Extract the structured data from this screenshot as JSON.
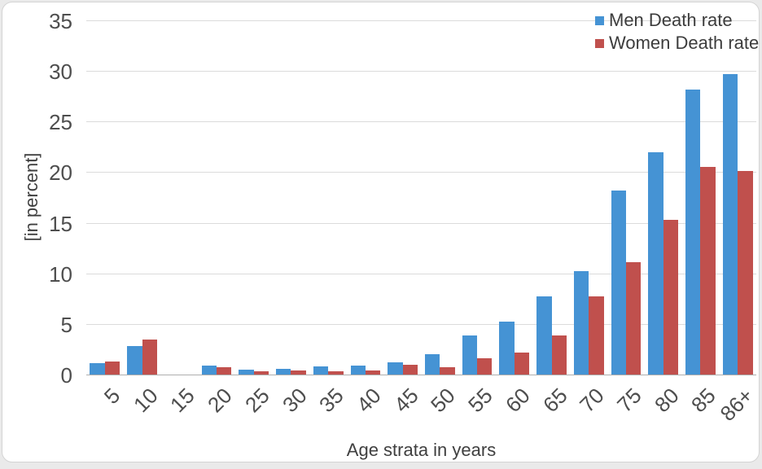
{
  "chart_data": {
    "type": "bar",
    "title": "",
    "xlabel": "Age strata in years",
    "ylabel": "[in percent]",
    "categories": [
      "5",
      "10",
      "15",
      "20",
      "25",
      "30",
      "35",
      "40",
      "45",
      "50",
      "55",
      "60",
      "65",
      "70",
      "75",
      "80",
      "85",
      "86+"
    ],
    "series": [
      {
        "name": "Men Death rate",
        "color": "#4593d4",
        "values": [
          1.1,
          2.8,
          0,
          0.9,
          0.5,
          0.6,
          0.8,
          0.9,
          1.2,
          2.0,
          3.9,
          5.2,
          7.7,
          10.2,
          18.2,
          22.0,
          28.2,
          29.7
        ]
      },
      {
        "name": "Women Death rate",
        "color": "#c0504d",
        "values": [
          1.3,
          3.5,
          0,
          0.7,
          0.3,
          0.4,
          0.3,
          0.4,
          1.0,
          0.7,
          1.6,
          2.2,
          3.9,
          7.7,
          11.1,
          15.3,
          20.5,
          20.1
        ]
      }
    ],
    "ylim": [
      0,
      35
    ],
    "yticks": [
      0,
      5,
      10,
      15,
      20,
      25,
      30,
      35
    ],
    "grid": true,
    "legend_position": "top-right",
    "colors": {
      "gridline": "#dbdbdb",
      "axisline": "#aeaeae",
      "tick_text": "#4e4e4e"
    }
  }
}
